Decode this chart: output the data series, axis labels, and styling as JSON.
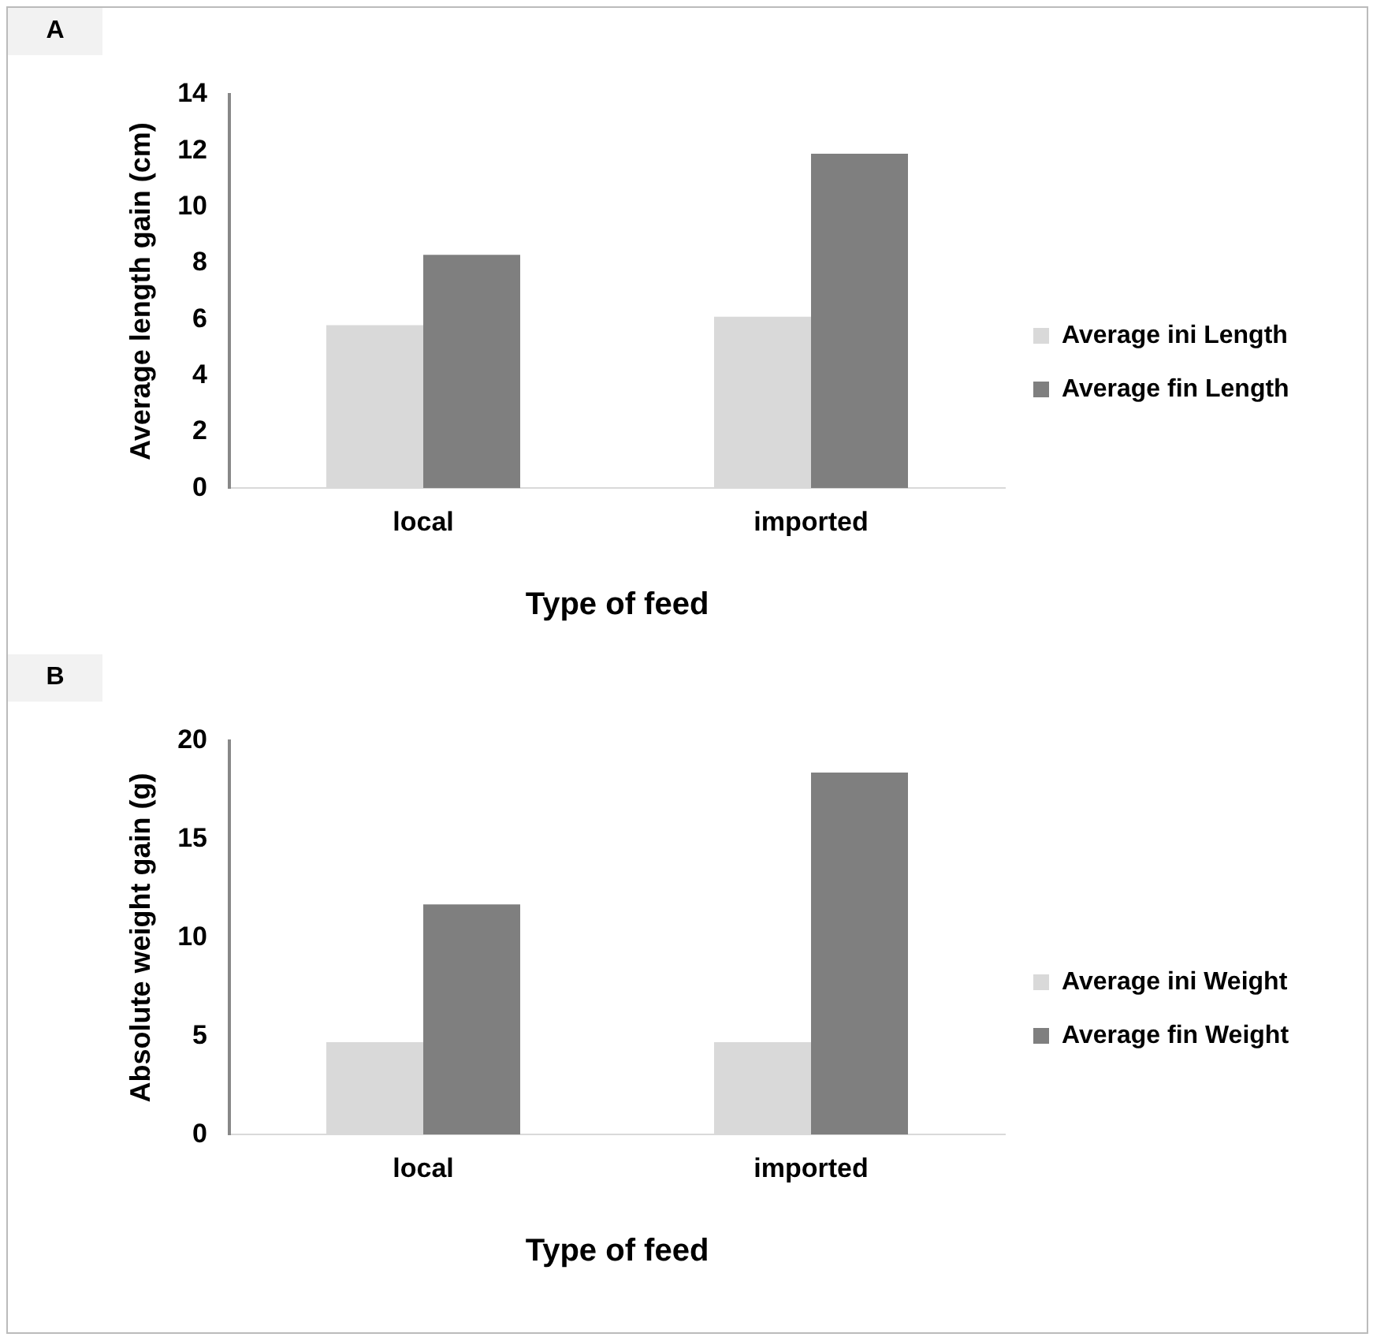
{
  "chart_data": [
    {
      "type": "bar",
      "annotations": [
        "A"
      ],
      "xlabel": "Type of feed",
      "ylabel": "Average length gain (cm)",
      "categories": [
        "local",
        "imported"
      ],
      "series": [
        {
          "name": "Average ini Length",
          "color": "#d9d9d9",
          "values": [
            5.8,
            6.1
          ]
        },
        {
          "name": "Average fin Length",
          "color": "#7f7f7f",
          "values": [
            8.3,
            11.9
          ]
        }
      ],
      "ylim": [
        0,
        14
      ],
      "yticks": [
        0,
        2,
        4,
        6,
        8,
        10,
        12,
        14
      ],
      "grid": false,
      "legend": "right"
    },
    {
      "type": "bar",
      "annotations": [
        "B"
      ],
      "xlabel": "Type of feed",
      "ylabel": "Absolute weight gain (g)",
      "categories": [
        "local",
        "imported"
      ],
      "series": [
        {
          "name": "Average ini Weight",
          "color": "#d9d9d9",
          "values": [
            4.7,
            4.7
          ]
        },
        {
          "name": "Average fin Weight",
          "color": "#7f7f7f",
          "values": [
            11.7,
            18.4
          ]
        }
      ],
      "ylim": [
        0,
        20
      ],
      "yticks": [
        0,
        5,
        10,
        15,
        20
      ],
      "grid": false,
      "legend": "right"
    }
  ]
}
